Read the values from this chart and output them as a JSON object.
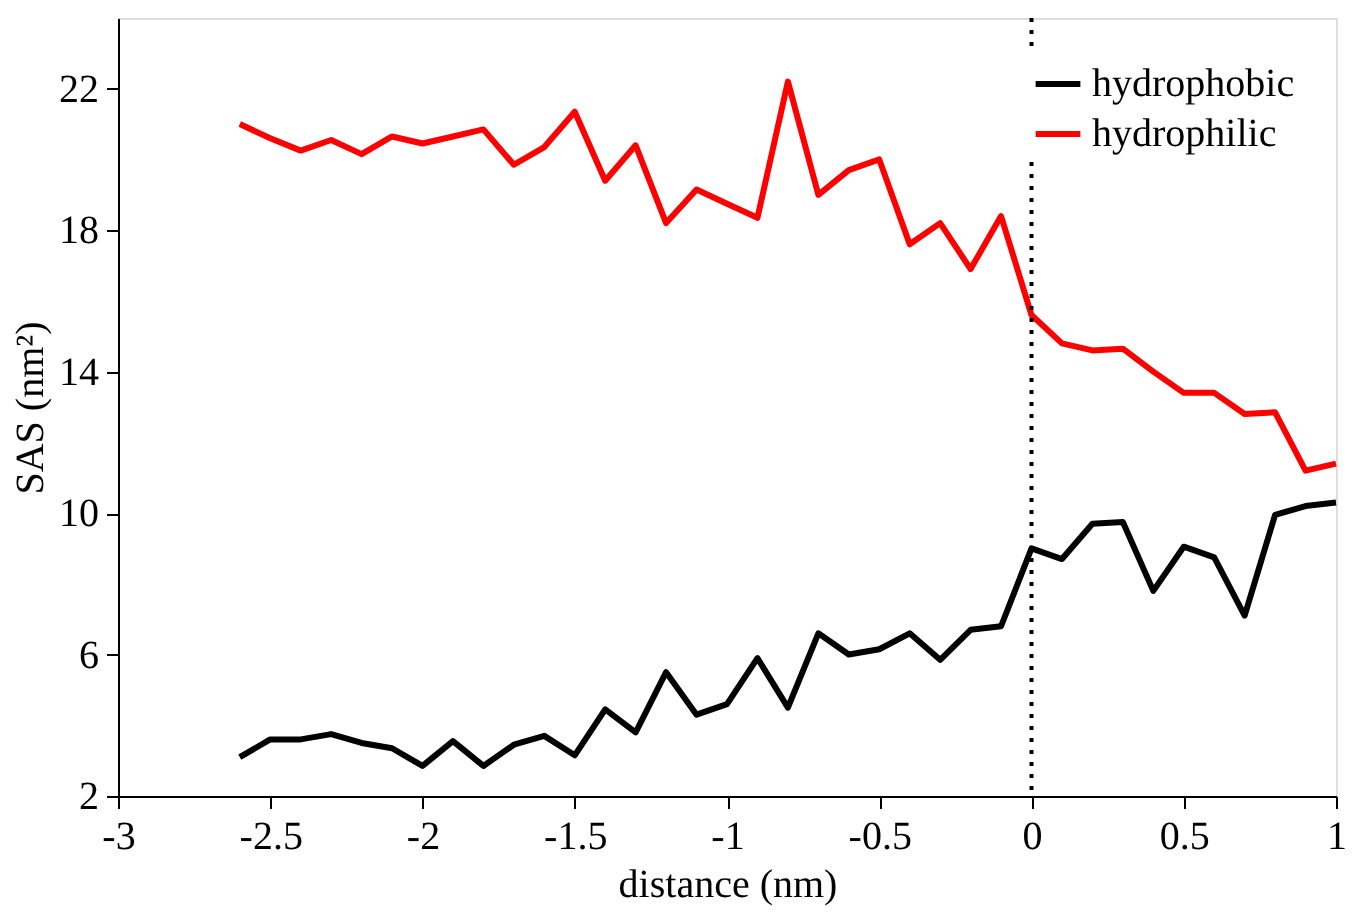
{
  "chart_data": {
    "type": "line",
    "xlabel": "distance (nm)",
    "ylabel": "SAS (nm²)",
    "x": [
      -2.6,
      -2.5,
      -2.4,
      -2.3,
      -2.2,
      -2.1,
      -2.0,
      -1.9,
      -1.8,
      -1.7,
      -1.6,
      -1.5,
      -1.4,
      -1.3,
      -1.2,
      -1.1,
      -1.0,
      -0.9,
      -0.8,
      -0.7,
      -0.6,
      -0.5,
      -0.4,
      -0.3,
      -0.2,
      -0.1,
      0.0,
      0.1,
      0.2,
      0.3,
      0.4,
      0.5,
      0.6,
      0.7,
      0.8,
      0.9,
      1.0
    ],
    "series": [
      {
        "name": "hydrophobic",
        "color": "#000000",
        "values": [
          3.1,
          3.6,
          3.6,
          3.75,
          3.5,
          3.35,
          2.85,
          3.55,
          2.85,
          3.45,
          3.7,
          3.15,
          4.45,
          3.8,
          5.5,
          4.3,
          4.6,
          5.9,
          4.5,
          6.6,
          6.0,
          6.15,
          6.6,
          5.85,
          6.7,
          6.8,
          9.0,
          8.7,
          9.7,
          9.75,
          7.8,
          9.05,
          8.75,
          7.1,
          9.95,
          10.2,
          10.3
        ]
      },
      {
        "name": "hydrophilic",
        "color": "#ff0000",
        "values": [
          21.0,
          20.6,
          20.25,
          20.55,
          20.15,
          20.65,
          20.45,
          20.65,
          20.85,
          19.85,
          20.35,
          21.35,
          19.4,
          20.4,
          18.2,
          19.15,
          18.75,
          18.35,
          22.2,
          19.0,
          19.7,
          20.0,
          17.6,
          18.2,
          16.9,
          18.4,
          15.6,
          14.8,
          14.6,
          14.65,
          14.0,
          13.4,
          13.4,
          12.8,
          12.85,
          11.2,
          11.4
        ]
      }
    ],
    "xlim": [
      -3,
      1
    ],
    "xticks": [
      -3,
      -2.5,
      -2,
      -1.5,
      -1,
      -0.5,
      0,
      0.5,
      1
    ],
    "ylim": [
      2,
      24
    ],
    "yticks": [
      2,
      6,
      10,
      14,
      18,
      22
    ],
    "ref_lines": [
      {
        "axis": "x",
        "value": 0,
        "line_style": "dotted",
        "color": "#000000"
      }
    ],
    "grid": false,
    "legend": "top right",
    "marker": "none",
    "line_style": "solid"
  }
}
